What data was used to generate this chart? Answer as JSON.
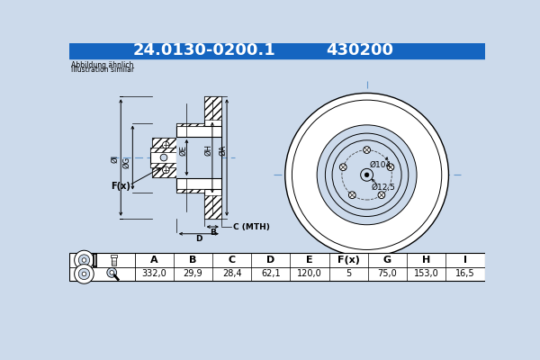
{
  "title_part": "24.0130-0200.1",
  "title_code": "430200",
  "title_bg": "#1565c0",
  "title_fg": "#ffffff",
  "subtitle1": "Abbildung ähnlich",
  "subtitle2": "Illustration similar",
  "table_headers": [
    "A",
    "B",
    "C",
    "D",
    "E",
    "F(x)",
    "G",
    "H",
    "I"
  ],
  "table_values": [
    "332,0",
    "29,9",
    "28,4",
    "62,1",
    "120,0",
    "5",
    "75,0",
    "153,0",
    "16,5"
  ],
  "label_B": "B",
  "label_C": "C (MTH)",
  "label_D": "D",
  "label_I": "ØI",
  "label_G": "ØG",
  "label_E": "ØE",
  "label_H": "ØH",
  "label_A": "ØA",
  "label_Fx": "F(x)",
  "dim104": "Ø104",
  "dim125": "Ø12,5",
  "bg_color": "#ccdaeb",
  "line_color": "#000000",
  "dim_color": "#000000",
  "center_line_color": "#6699cc"
}
